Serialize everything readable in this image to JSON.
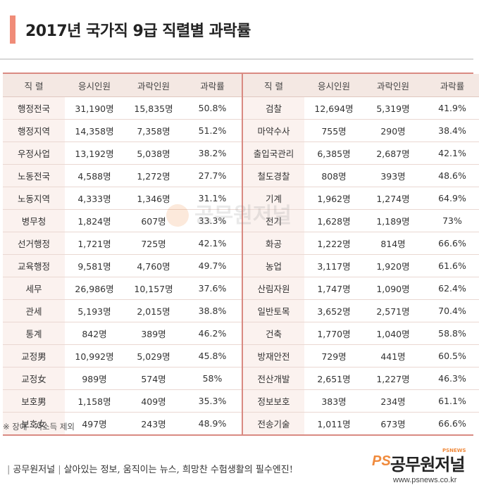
{
  "title": "2017년 국가직 9급 직렬별 과락률",
  "headers": [
    "직 렬",
    "응시인원",
    "과락인원",
    "과락률",
    "직 렬",
    "응시인원",
    "과락인원",
    "과락률"
  ],
  "rows": [
    [
      [
        "행정전국",
        "31,190명",
        "15,835명",
        "50.8%"
      ],
      [
        "검찰",
        "12,694명",
        "5,319명",
        "41.9%"
      ]
    ],
    [
      [
        "행정지역",
        "14,358명",
        "7,358명",
        "51.2%"
      ],
      [
        "마약수사",
        "755명",
        "290명",
        "38.4%"
      ]
    ],
    [
      [
        "우정사업",
        "13,192명",
        "5,038명",
        "38.2%"
      ],
      [
        "출입국관리",
        "6,385명",
        "2,687명",
        "42.1%"
      ]
    ],
    [
      [
        "노동전국",
        "4,588명",
        "1,272명",
        "27.7%"
      ],
      [
        "철도경찰",
        "808명",
        "393명",
        "48.6%"
      ]
    ],
    [
      [
        "노동지역",
        "4,333명",
        "1,346명",
        "31.1%"
      ],
      [
        "기계",
        "1,962명",
        "1,274명",
        "64.9%"
      ]
    ],
    [
      [
        "병무청",
        "1,824명",
        "607명",
        "33.3%"
      ],
      [
        "전기",
        "1,628명",
        "1,189명",
        "73%"
      ]
    ],
    [
      [
        "선거행정",
        "1,721명",
        "725명",
        "42.1%"
      ],
      [
        "화공",
        "1,222명",
        "814명",
        "66.6%"
      ]
    ],
    [
      [
        "교육행정",
        "9,581명",
        "4,760명",
        "49.7%"
      ],
      [
        "농업",
        "3,117명",
        "1,920명",
        "61.6%"
      ]
    ],
    [
      [
        "세무",
        "26,986명",
        "10,157명",
        "37.6%"
      ],
      [
        "산림자원",
        "1,747명",
        "1,090명",
        "62.4%"
      ]
    ],
    [
      [
        "관세",
        "5,193명",
        "2,015명",
        "38.8%"
      ],
      [
        "일반토목",
        "3,652명",
        "2,571명",
        "70.4%"
      ]
    ],
    [
      [
        "통계",
        "842명",
        "389명",
        "46.2%"
      ],
      [
        "건축",
        "1,770명",
        "1,040명",
        "58.8%"
      ]
    ],
    [
      [
        "교정男",
        "10,992명",
        "5,029명",
        "45.8%"
      ],
      [
        "방재안전",
        "729명",
        "441명",
        "60.5%"
      ]
    ],
    [
      [
        "교정女",
        "989명",
        "574명",
        "58%"
      ],
      [
        "전산개발",
        "2,651명",
        "1,227명",
        "46.3%"
      ]
    ],
    [
      [
        "보호男",
        "1,158명",
        "409명",
        "35.3%"
      ],
      [
        "정보보호",
        "383명",
        "234명",
        "61.1%"
      ]
    ],
    [
      [
        "보호女",
        "497명",
        "243명",
        "48.9%"
      ],
      [
        "전송기술",
        "1,011명",
        "673명",
        "66.6%"
      ]
    ]
  ],
  "note": "※ 장애 · 저소득 제외",
  "watermark": "공무원저널",
  "footer": {
    "brand": "공무원저널",
    "slogan": "살아있는 정보, 움직이는 뉴스, 희망찬 수험생활의 필수엔진!"
  },
  "logo": {
    "mark": "PS",
    "name": "공무원저널",
    "sub": "PSNEWS",
    "url": "www.psnews.co.kr"
  },
  "colors": {
    "accent": "#f08c78",
    "header_bg": "#f4e8e3",
    "border": "#d98a82",
    "logo_orange": "#f08a3c"
  }
}
